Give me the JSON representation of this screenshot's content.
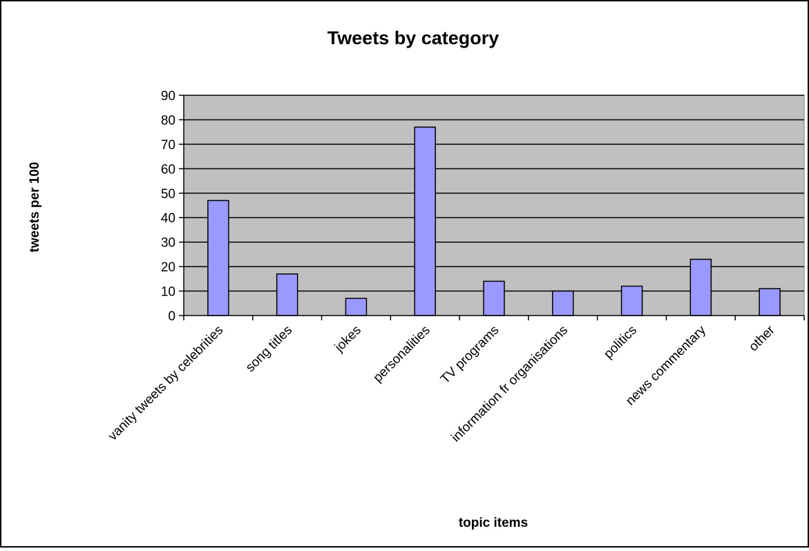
{
  "chart_data": {
    "type": "bar",
    "title": "Tweets by category",
    "xlabel": "topic items",
    "ylabel": "tweets per 100",
    "categories": [
      "vanity tweets by celebrities",
      "song titles",
      "jokes",
      "personalities",
      "TV programs",
      "information fr organisations",
      "politics",
      "news commentary",
      "other"
    ],
    "values": [
      47,
      17,
      7,
      77,
      14,
      10,
      12,
      23,
      11
    ],
    "ylim": [
      0,
      90
    ],
    "yticks": [
      0,
      10,
      20,
      30,
      40,
      50,
      60,
      70,
      80,
      90
    ],
    "grid": true,
    "legend": "none",
    "colors": {
      "bar_fill": "#9999ff",
      "bar_stroke": "#000000",
      "plot_background": "#c0c0c0",
      "gridline": "#000000"
    }
  }
}
